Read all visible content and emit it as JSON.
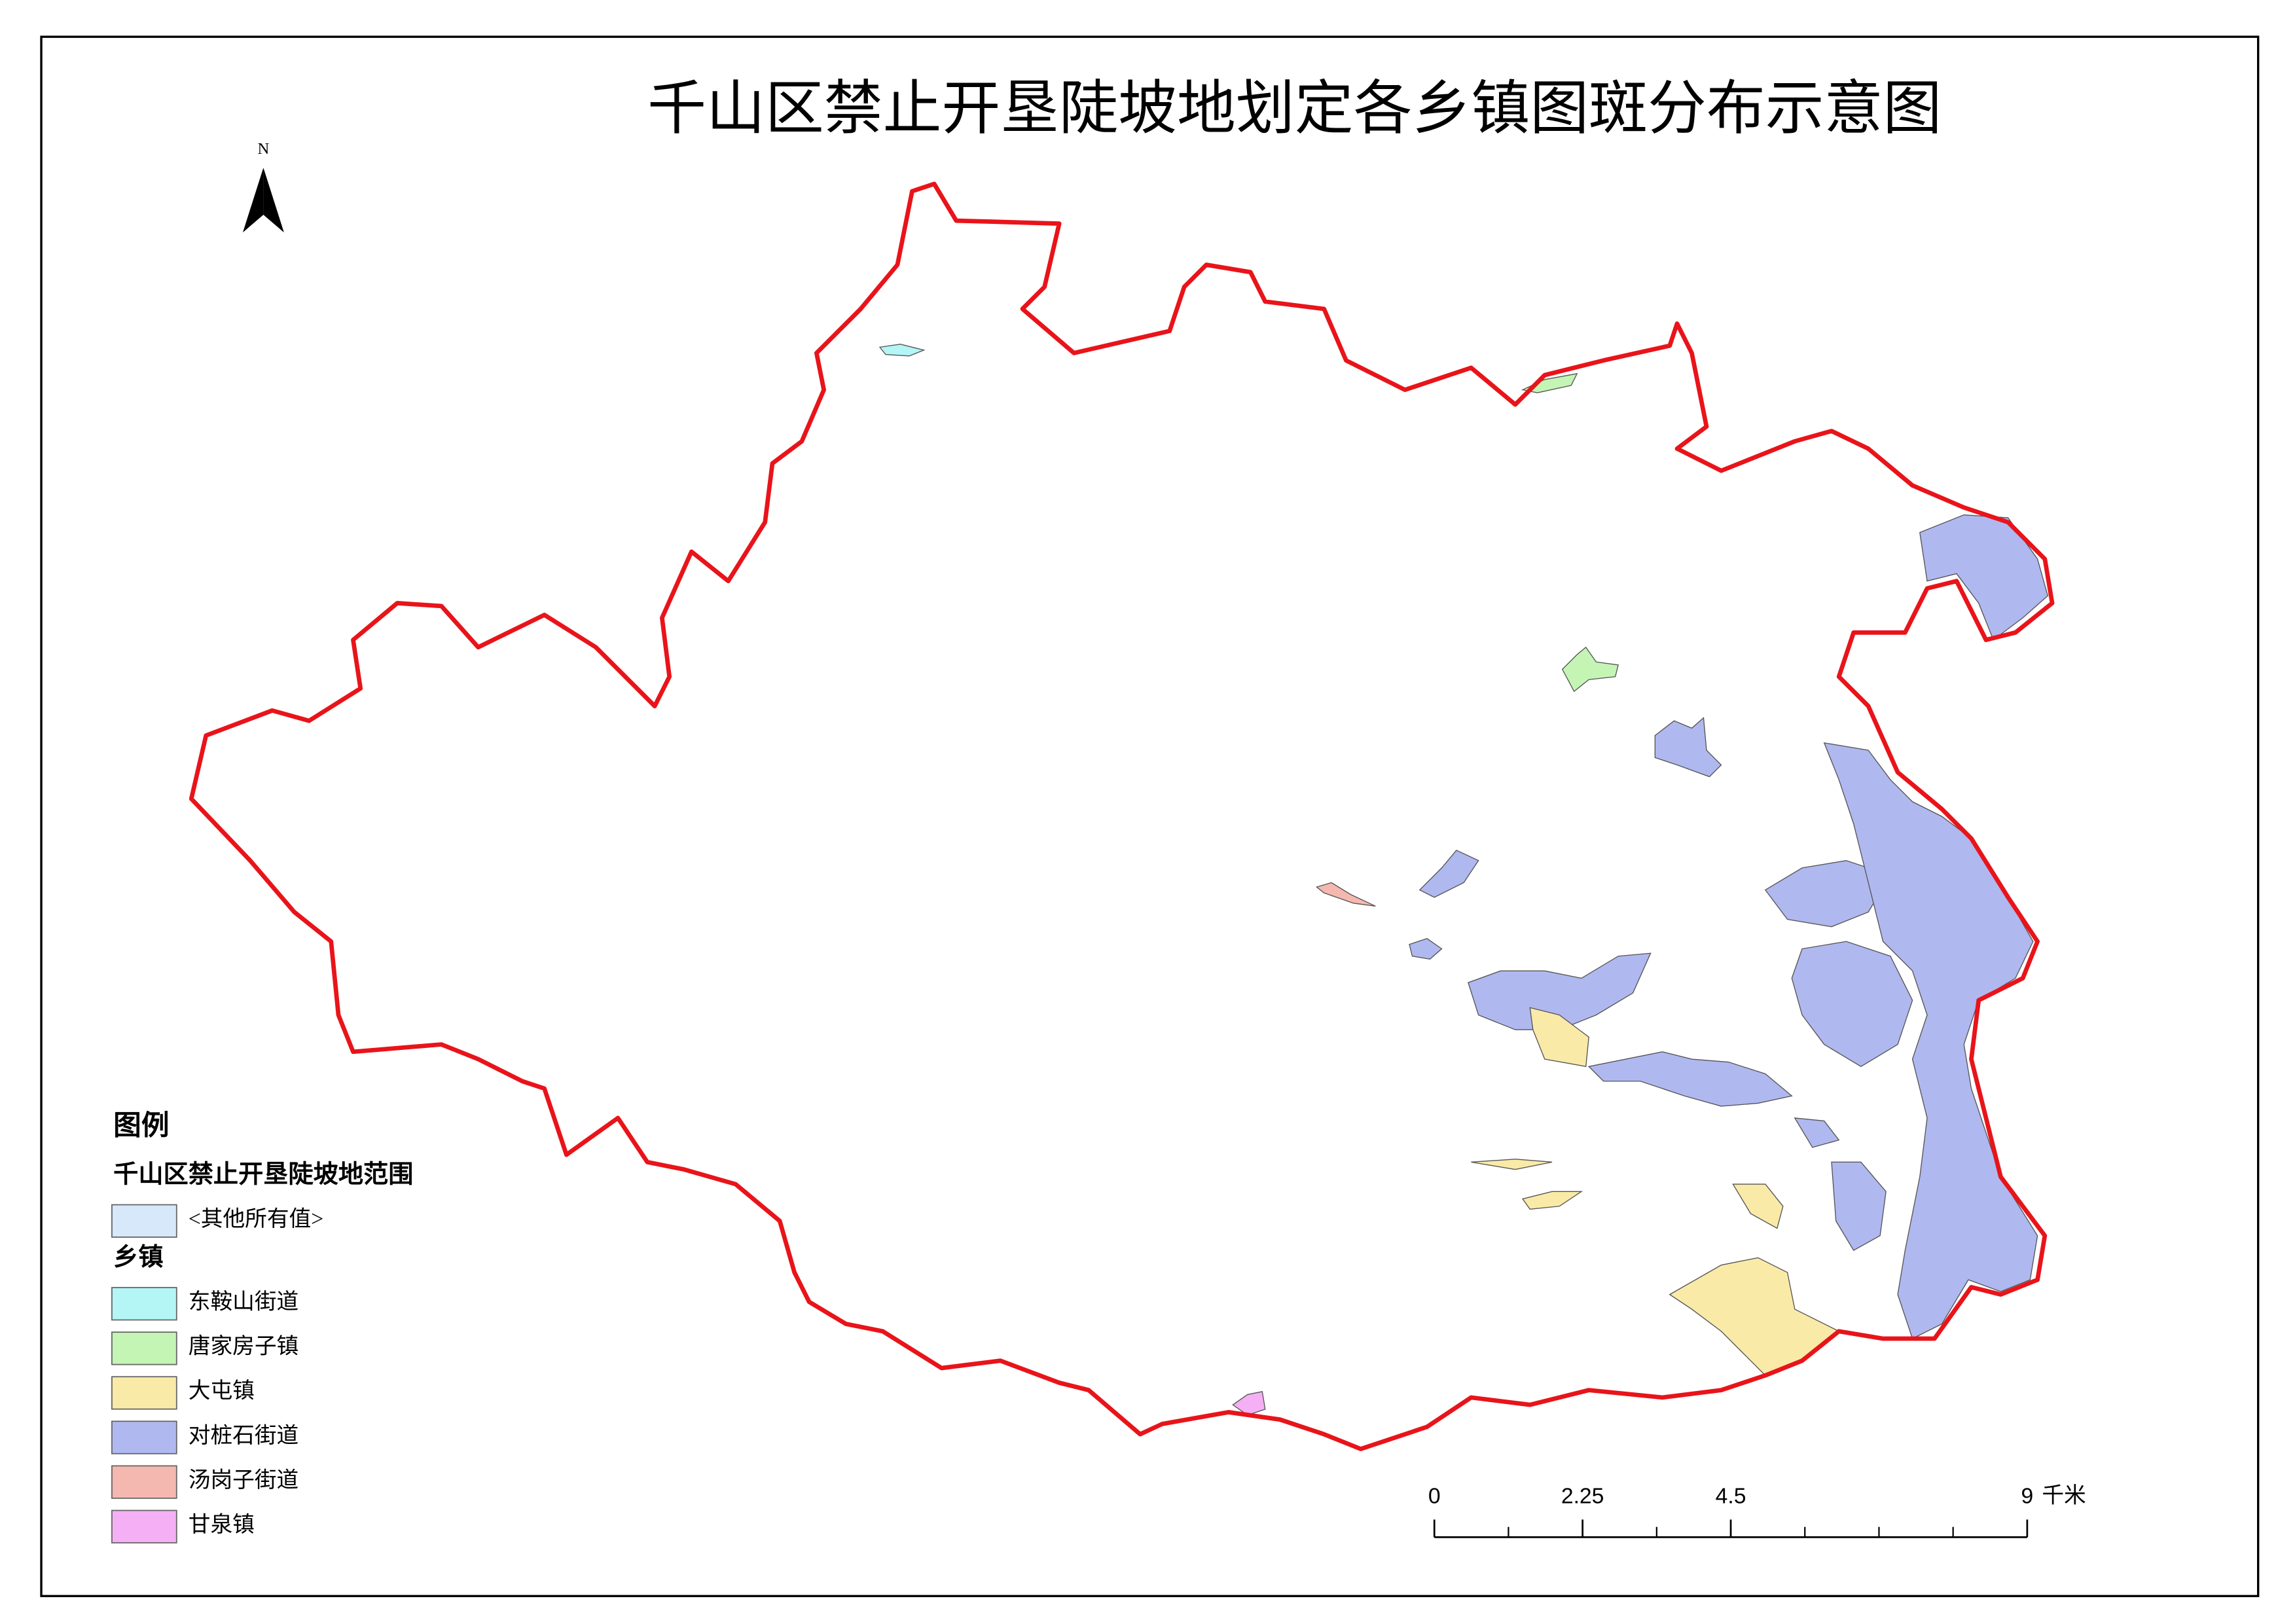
{
  "title": "千山区禁止开垦陡坡地划定各乡镇图斑分布示意图",
  "north": "N",
  "legend": {
    "title": "图例",
    "groups": [
      {
        "title": "千山区禁止开垦陡坡地范围",
        "items": [
          {
            "label": "<其他所有值>",
            "color": "#d6e8fa"
          }
        ]
      },
      {
        "title": "乡镇",
        "items": [
          {
            "label": "东鞍山街道",
            "color": "#b4f5f5"
          },
          {
            "label": "唐家房子镇",
            "color": "#c4f5b4"
          },
          {
            "label": "大屯镇",
            "color": "#faeaa8"
          },
          {
            "label": "对桩石街道",
            "color": "#b0b8f0"
          },
          {
            "label": "汤岗子街道",
            "color": "#f5b8b0"
          },
          {
            "label": "甘泉镇",
            "color": "#f5b0f5"
          }
        ]
      }
    ]
  },
  "scale_bar": {
    "ticks": [
      0,
      2.25,
      4.5,
      9
    ],
    "unit": "千米"
  }
}
